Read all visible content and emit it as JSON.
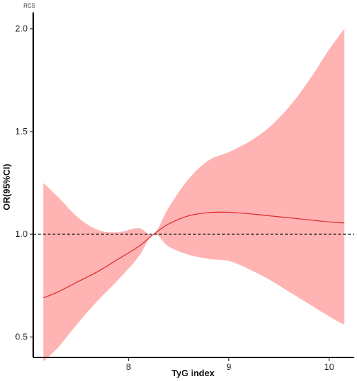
{
  "chart_data": {
    "type": "line",
    "title": "RCS",
    "xlabel": "TyG index",
    "ylabel": "OR(95%CI)",
    "xlim": [
      7.05,
      10.25
    ],
    "ylim": [
      0.4,
      2.08
    ],
    "x_ticks": [
      8,
      9,
      10
    ],
    "y_ticks": [
      0.5,
      1.0,
      1.5,
      2.0
    ],
    "x_tick_labels": [
      "8",
      "9",
      "10"
    ],
    "y_tick_labels": [
      "0.5",
      "1.0",
      "1.5",
      "2.0"
    ],
    "reference_line": {
      "y": 1.0,
      "style": "dashed"
    },
    "grid": false,
    "colors": {
      "line": "#e03030",
      "band": "#ffb3b3",
      "axis": "#000000",
      "reference": "#000000"
    },
    "series": [
      {
        "x": [
          7.15,
          7.3,
          7.5,
          7.7,
          7.9,
          8.1,
          8.25,
          8.4,
          8.6,
          8.8,
          9.0,
          9.2,
          9.4,
          9.6,
          9.8,
          10.0,
          10.15
        ],
        "values": [
          0.69,
          0.72,
          0.77,
          0.82,
          0.88,
          0.94,
          1.0,
          1.05,
          1.09,
          1.105,
          1.107,
          1.1,
          1.09,
          1.08,
          1.07,
          1.06,
          1.055
        ],
        "lower": [
          0.38,
          0.45,
          0.57,
          0.68,
          0.78,
          0.89,
          1.0,
          0.94,
          0.9,
          0.88,
          0.87,
          0.83,
          0.78,
          0.72,
          0.66,
          0.6,
          0.56
        ],
        "upper": [
          1.25,
          1.18,
          1.08,
          1.02,
          1.01,
          1.03,
          1.0,
          1.13,
          1.27,
          1.36,
          1.4,
          1.45,
          1.52,
          1.62,
          1.75,
          1.9,
          2.0
        ]
      }
    ]
  }
}
